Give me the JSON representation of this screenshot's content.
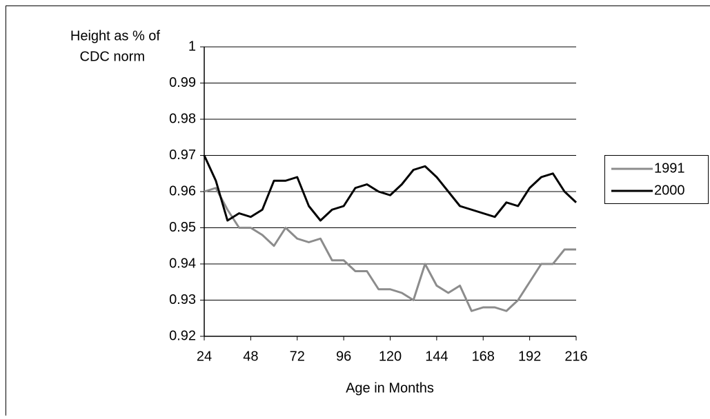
{
  "chart_data": {
    "type": "line",
    "y_label": [
      "Height as % of",
      "CDC norm"
    ],
    "x_label": "Age in Months",
    "x": [
      24,
      30,
      36,
      42,
      48,
      54,
      60,
      66,
      72,
      78,
      84,
      90,
      96,
      102,
      108,
      114,
      120,
      126,
      132,
      138,
      144,
      150,
      156,
      162,
      168,
      174,
      180,
      186,
      192,
      198,
      204,
      210,
      216
    ],
    "series": [
      {
        "name": "1991",
        "color": "#8c8c8c",
        "values": [
          0.96,
          0.961,
          0.955,
          0.95,
          0.95,
          0.948,
          0.945,
          0.95,
          0.947,
          0.946,
          0.947,
          0.941,
          0.941,
          0.938,
          0.938,
          0.933,
          0.933,
          0.932,
          0.93,
          0.94,
          0.934,
          0.932,
          0.934,
          0.927,
          0.928,
          0.928,
          0.927,
          0.93,
          0.935,
          0.94,
          0.94,
          0.944,
          0.944
        ]
      },
      {
        "name": "2000",
        "color": "#000000",
        "values": [
          0.97,
          0.963,
          0.952,
          0.954,
          0.953,
          0.955,
          0.963,
          0.963,
          0.964,
          0.956,
          0.952,
          0.955,
          0.956,
          0.961,
          0.962,
          0.96,
          0.959,
          0.962,
          0.966,
          0.967,
          0.964,
          0.96,
          0.956,
          0.955,
          0.954,
          0.953,
          0.957,
          0.956,
          0.961,
          0.964,
          0.965,
          0.96,
          0.957
        ]
      }
    ],
    "xlim": [
      24,
      216
    ],
    "xticks": [
      24,
      48,
      72,
      96,
      120,
      144,
      168,
      192,
      216
    ],
    "ylim": [
      0.92,
      1
    ],
    "yticks": [
      0.92,
      0.93,
      0.94,
      0.95,
      0.96,
      0.97,
      0.98,
      0.99,
      1
    ],
    "grid": true,
    "legend": "right"
  }
}
